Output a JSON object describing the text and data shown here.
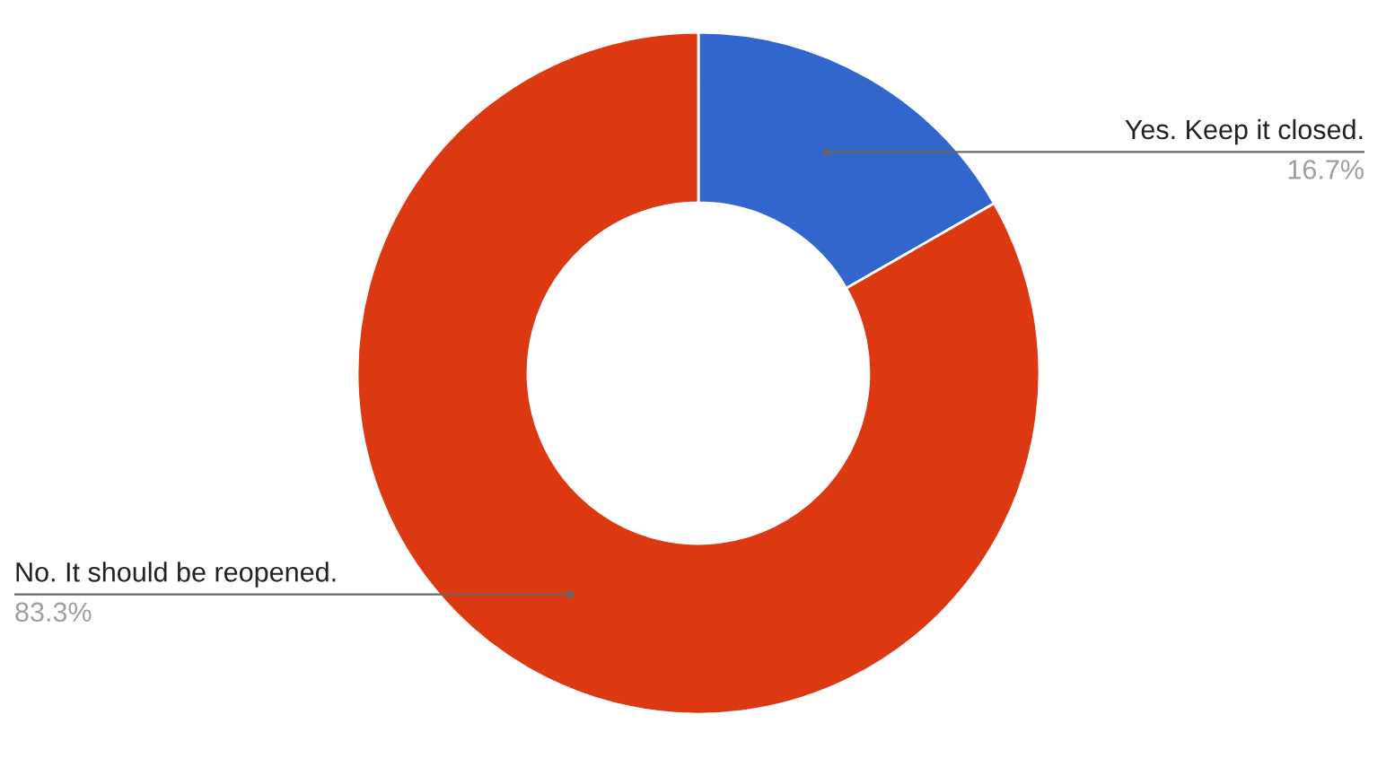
{
  "chart_data": {
    "type": "donut",
    "categories": [
      "Yes. Keep it closed.",
      "No. It should be reopened."
    ],
    "values": [
      16.7,
      83.3
    ],
    "colors": [
      "#3366cc",
      "#dc3912"
    ],
    "value_labels": [
      "16.7%",
      "83.3%"
    ],
    "legend": false
  }
}
